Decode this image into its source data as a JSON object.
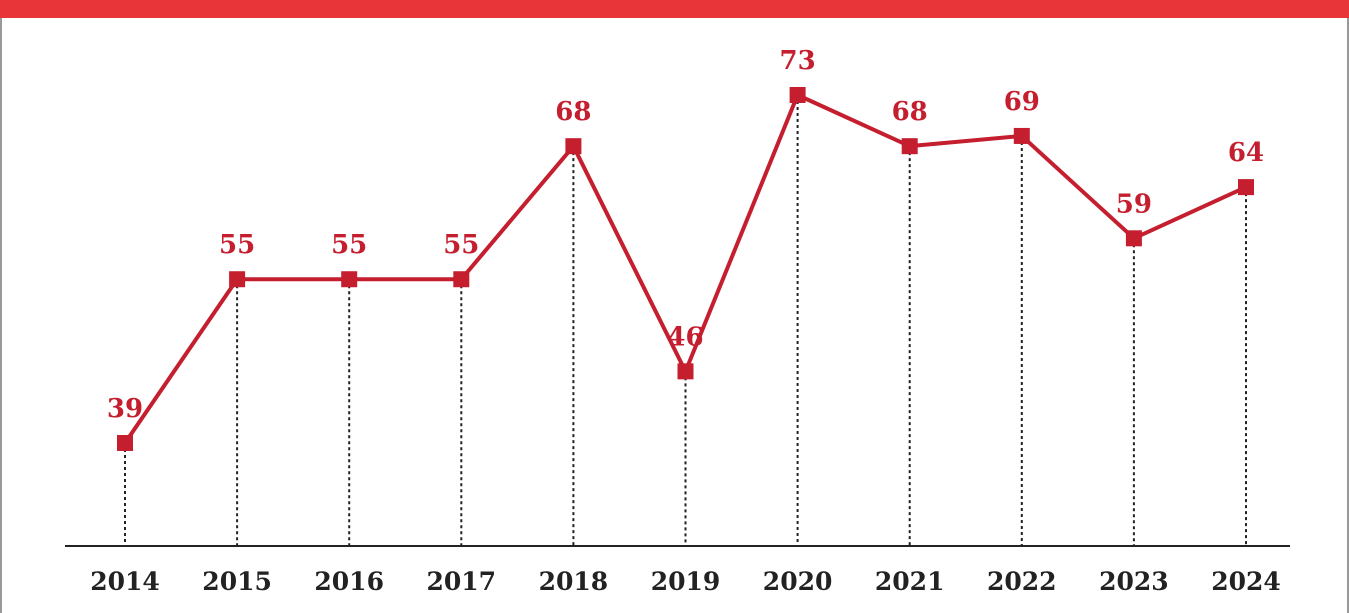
{
  "chart_data": {
    "type": "line",
    "categories": [
      "2014",
      "2015",
      "2016",
      "2017",
      "2018",
      "2019",
      "2020",
      "2021",
      "2022",
      "2023",
      "2024"
    ],
    "series": [
      {
        "color": "#c41e2f",
        "values": [
          39,
          55,
          55,
          55,
          68,
          46,
          73,
          68,
          69,
          59,
          64
        ]
      }
    ]
  }
}
